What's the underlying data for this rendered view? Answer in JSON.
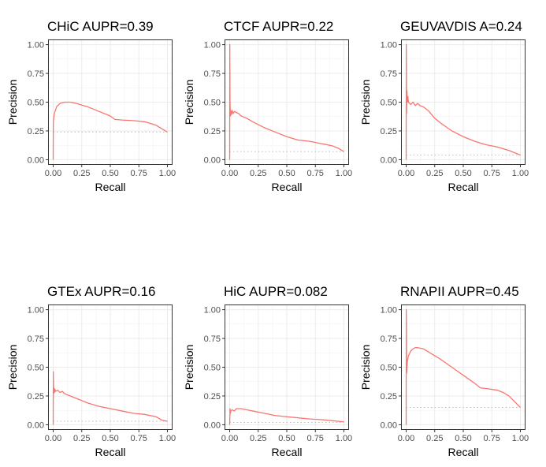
{
  "chart_data": [
    {
      "type": "line",
      "title": "CHiC AUPR=0.39",
      "xlabel": "Recall",
      "ylabel": "Precision",
      "xlim": [
        0,
        1
      ],
      "ylim": [
        0,
        1
      ],
      "xticks": [
        "0.00",
        "0.25",
        "0.50",
        "0.75",
        "1.00"
      ],
      "yticks": [
        "0.00",
        "0.25",
        "0.50",
        "0.75",
        "1.00"
      ],
      "grid": true,
      "series_color": "#f8766d",
      "baseline": 0.24,
      "x": [
        0,
        0.001,
        0.01,
        0.03,
        0.06,
        0.1,
        0.15,
        0.2,
        0.3,
        0.4,
        0.5,
        0.54,
        0.6,
        0.7,
        0.8,
        0.9,
        0.95,
        1.0
      ],
      "y": [
        0.0,
        0.33,
        0.4,
        0.46,
        0.49,
        0.5,
        0.5,
        0.49,
        0.46,
        0.42,
        0.38,
        0.35,
        0.345,
        0.34,
        0.33,
        0.3,
        0.27,
        0.24
      ]
    },
    {
      "type": "line",
      "title": "CTCF AUPR=0.22",
      "xlabel": "Recall",
      "ylabel": "Precision",
      "xlim": [
        0,
        1
      ],
      "ylim": [
        0,
        1
      ],
      "xticks": [
        "0.00",
        "0.25",
        "0.50",
        "0.75",
        "1.00"
      ],
      "yticks": [
        "0.00",
        "0.25",
        "0.50",
        "0.75",
        "1.00"
      ],
      "grid": true,
      "series_color": "#f8766d",
      "baseline": 0.07,
      "x": [
        0,
        0.001,
        0.003,
        0.006,
        0.01,
        0.015,
        0.02,
        0.03,
        0.04,
        0.06,
        0.08,
        0.1,
        0.15,
        0.2,
        0.3,
        0.4,
        0.5,
        0.6,
        0.7,
        0.8,
        0.9,
        0.95,
        1.0
      ],
      "y": [
        0.0,
        1.0,
        0.5,
        0.38,
        0.42,
        0.39,
        0.43,
        0.4,
        0.42,
        0.41,
        0.4,
        0.38,
        0.36,
        0.33,
        0.28,
        0.24,
        0.2,
        0.17,
        0.16,
        0.14,
        0.12,
        0.1,
        0.07
      ]
    },
    {
      "type": "line",
      "title": "GEUVAVDIS A=0.24",
      "xlabel": "Recall",
      "ylabel": "Precision",
      "xlim": [
        0,
        1
      ],
      "ylim": [
        0,
        1
      ],
      "xticks": [
        "0.00",
        "0.25",
        "0.50",
        "0.75",
        "1.00"
      ],
      "yticks": [
        "0.00",
        "0.25",
        "0.50",
        "0.75",
        "1.00"
      ],
      "grid": true,
      "series_color": "#f8766d",
      "baseline": 0.04,
      "x": [
        0,
        0.001,
        0.003,
        0.006,
        0.01,
        0.015,
        0.02,
        0.04,
        0.06,
        0.08,
        0.1,
        0.12,
        0.15,
        0.2,
        0.25,
        0.3,
        0.4,
        0.5,
        0.6,
        0.7,
        0.8,
        0.9,
        1.0
      ],
      "y": [
        0.0,
        1.0,
        0.4,
        0.6,
        0.5,
        0.55,
        0.5,
        0.48,
        0.5,
        0.47,
        0.49,
        0.47,
        0.46,
        0.42,
        0.36,
        0.32,
        0.25,
        0.2,
        0.16,
        0.13,
        0.11,
        0.08,
        0.04
      ]
    },
    {
      "type": "line",
      "title": "GTEx AUPR=0.16",
      "xlabel": "Recall",
      "ylabel": "Precision",
      "xlim": [
        0,
        1
      ],
      "ylim": [
        0,
        1
      ],
      "xticks": [
        "0.00",
        "0.25",
        "0.50",
        "0.75",
        "1.00"
      ],
      "yticks": [
        "0.00",
        "0.25",
        "0.50",
        "0.75",
        "1.00"
      ],
      "grid": true,
      "series_color": "#f8766d",
      "baseline": 0.03,
      "x": [
        0,
        0.001,
        0.003,
        0.006,
        0.01,
        0.015,
        0.02,
        0.04,
        0.06,
        0.08,
        0.1,
        0.15,
        0.2,
        0.3,
        0.4,
        0.5,
        0.6,
        0.7,
        0.8,
        0.9,
        0.95,
        1.0
      ],
      "y": [
        0.0,
        0.46,
        0.27,
        0.32,
        0.28,
        0.31,
        0.29,
        0.3,
        0.28,
        0.29,
        0.27,
        0.25,
        0.23,
        0.19,
        0.16,
        0.14,
        0.12,
        0.1,
        0.09,
        0.07,
        0.04,
        0.03
      ]
    },
    {
      "type": "line",
      "title": "HiC AUPR=0.082",
      "xlabel": "Recall",
      "ylabel": "Precision",
      "xlim": [
        0,
        1
      ],
      "ylim": [
        0,
        1
      ],
      "xticks": [
        "0.00",
        "0.25",
        "0.50",
        "0.75",
        "1.00"
      ],
      "yticks": [
        "0.00",
        "0.25",
        "0.50",
        "0.75",
        "1.00"
      ],
      "grid": true,
      "series_color": "#f8766d",
      "baseline": 0.02,
      "x": [
        0,
        0.003,
        0.006,
        0.01,
        0.02,
        0.04,
        0.06,
        0.1,
        0.15,
        0.2,
        0.3,
        0.4,
        0.5,
        0.6,
        0.7,
        0.8,
        0.9,
        1.0
      ],
      "y": [
        0.0,
        0.14,
        0.1,
        0.12,
        0.13,
        0.12,
        0.14,
        0.14,
        0.13,
        0.12,
        0.1,
        0.08,
        0.07,
        0.06,
        0.05,
        0.045,
        0.035,
        0.025
      ]
    },
    {
      "type": "line",
      "title": "RNAPII AUPR=0.45",
      "xlabel": "Recall",
      "ylabel": "Precision",
      "xlim": [
        0,
        1
      ],
      "ylim": [
        0,
        1
      ],
      "xticks": [
        "0.00",
        "0.25",
        "0.50",
        "0.75",
        "1.00"
      ],
      "yticks": [
        "0.00",
        "0.25",
        "0.50",
        "0.75",
        "1.00"
      ],
      "grid": true,
      "series_color": "#f8766d",
      "baseline": 0.15,
      "x": [
        0,
        0.001,
        0.004,
        0.01,
        0.02,
        0.04,
        0.06,
        0.08,
        0.1,
        0.15,
        0.2,
        0.3,
        0.4,
        0.5,
        0.6,
        0.65,
        0.7,
        0.8,
        0.85,
        0.9,
        0.95,
        1.0
      ],
      "y": [
        0.0,
        1.0,
        0.45,
        0.55,
        0.6,
        0.64,
        0.66,
        0.67,
        0.67,
        0.66,
        0.63,
        0.57,
        0.5,
        0.43,
        0.36,
        0.32,
        0.315,
        0.3,
        0.28,
        0.25,
        0.2,
        0.15
      ]
    }
  ]
}
